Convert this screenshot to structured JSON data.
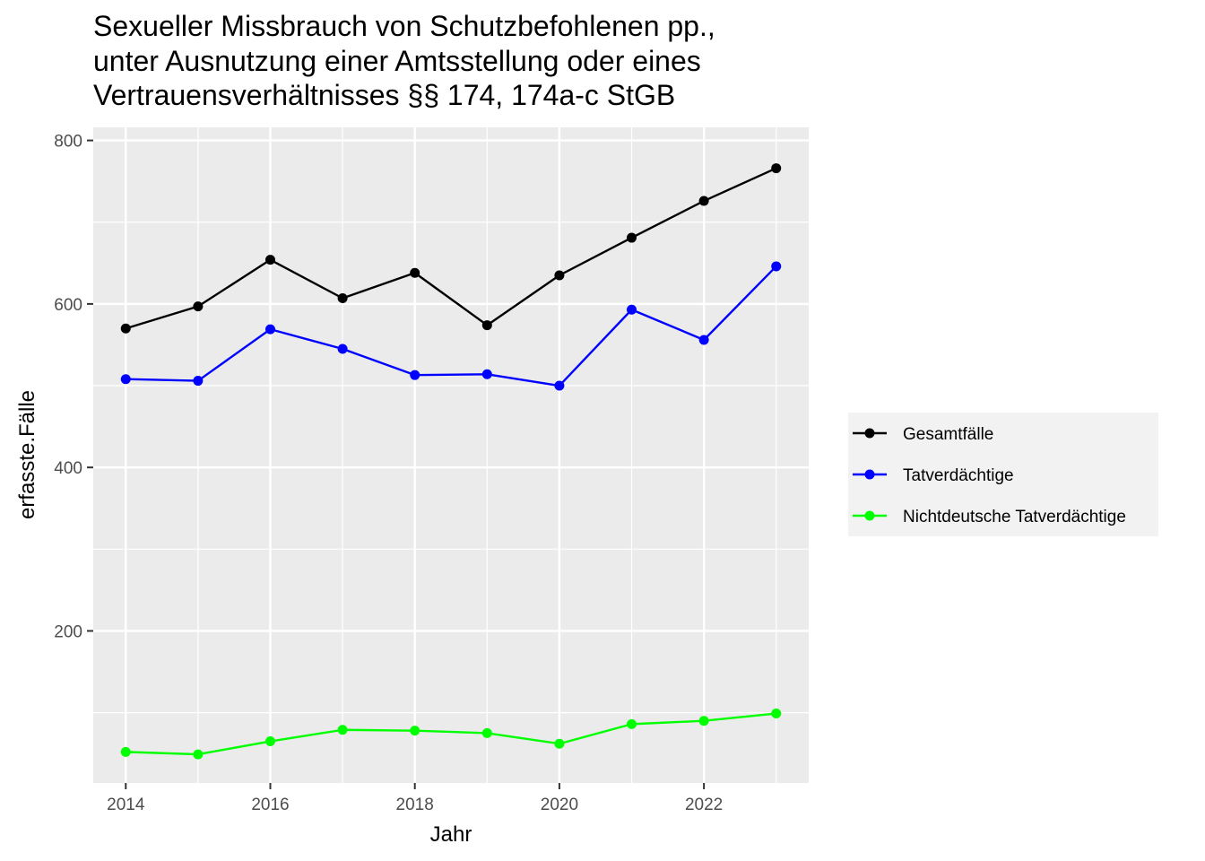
{
  "chart_data": {
    "type": "line",
    "title": [
      "Sexueller Missbrauch von Schutzbefohlenen pp.,",
      "unter Ausnutzung einer Amtsstellung oder eines",
      "Vertrauensverhältnisses §§ 174, 174a-c StGB"
    ],
    "xlabel": "Jahr",
    "ylabel": "erfasste.Fälle",
    "x": [
      2014,
      2015,
      2016,
      2017,
      2018,
      2019,
      2020,
      2021,
      2022,
      2023
    ],
    "x_ticks": [
      2014,
      2016,
      2018,
      2020,
      2022
    ],
    "y_ticks": [
      200,
      400,
      600,
      800
    ],
    "xlim": [
      2013.55,
      2023.45
    ],
    "ylim": [
      14,
      816
    ],
    "grid": true,
    "legend_position": "right",
    "series": [
      {
        "name": "Gesamtfälle",
        "color": "#000000",
        "values": [
          570,
          597,
          654,
          607,
          638,
          574,
          635,
          681,
          726,
          766
        ]
      },
      {
        "name": "Tatverdächtige",
        "color": "#0000ff",
        "values": [
          508,
          506,
          569,
          545,
          513,
          514,
          500,
          593,
          556,
          646
        ]
      },
      {
        "name": "Nichtdeutsche Tatverdächtige",
        "color": "#00ff00",
        "values": [
          52,
          49,
          65,
          79,
          78,
          75,
          62,
          86,
          90,
          99
        ]
      }
    ]
  }
}
